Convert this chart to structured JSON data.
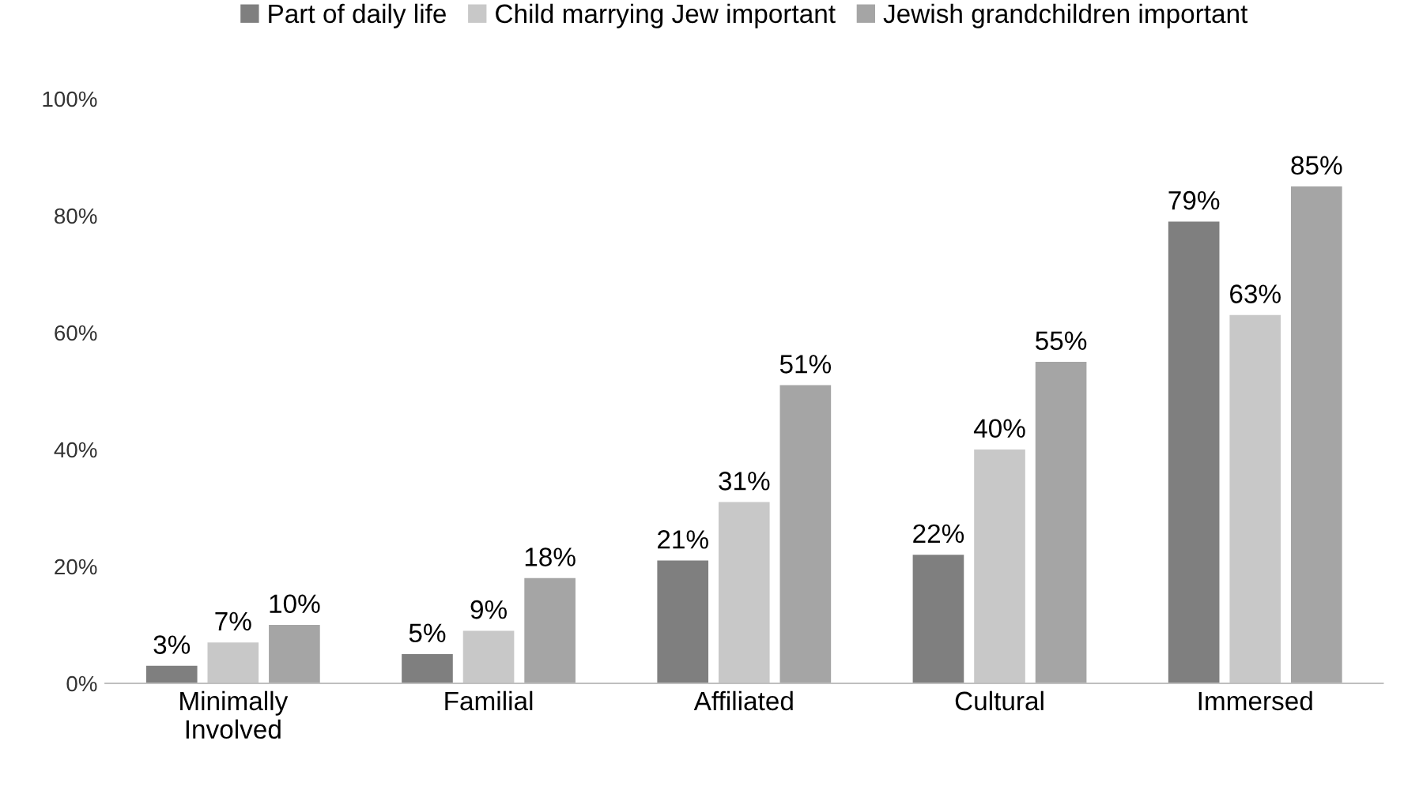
{
  "chart_data": {
    "type": "bar",
    "categories": [
      "Minimally\nInvolved",
      "Familial",
      "Affiliated",
      "Cultural",
      "Immersed"
    ],
    "series": [
      {
        "name": "Part of daily life",
        "color": "#7f7f7f",
        "values": [
          3,
          5,
          21,
          22,
          79
        ],
        "value_labels": [
          "3%",
          "5%",
          "21%",
          "22%",
          "79%"
        ]
      },
      {
        "name": "Child marrying Jew important",
        "color": "#c8c8c8",
        "values": [
          7,
          9,
          31,
          40,
          63
        ],
        "value_labels": [
          "7%",
          "9%",
          "31%",
          "40%",
          "63%"
        ]
      },
      {
        "name": "Jewish grandchildren important",
        "color": "#a5a5a5",
        "values": [
          10,
          18,
          51,
          55,
          85
        ],
        "value_labels": [
          "10%",
          "18%",
          "51%",
          "55%",
          "85%"
        ]
      }
    ],
    "ylim": [
      0,
      100
    ],
    "yticks": [
      {
        "value": 0,
        "label": "0%"
      },
      {
        "value": 20,
        "label": "20%"
      },
      {
        "value": 40,
        "label": "40%"
      },
      {
        "value": 60,
        "label": "60%"
      },
      {
        "value": 80,
        "label": "80%"
      },
      {
        "value": 100,
        "label": "100%"
      }
    ],
    "grid": false,
    "legend": "top"
  }
}
